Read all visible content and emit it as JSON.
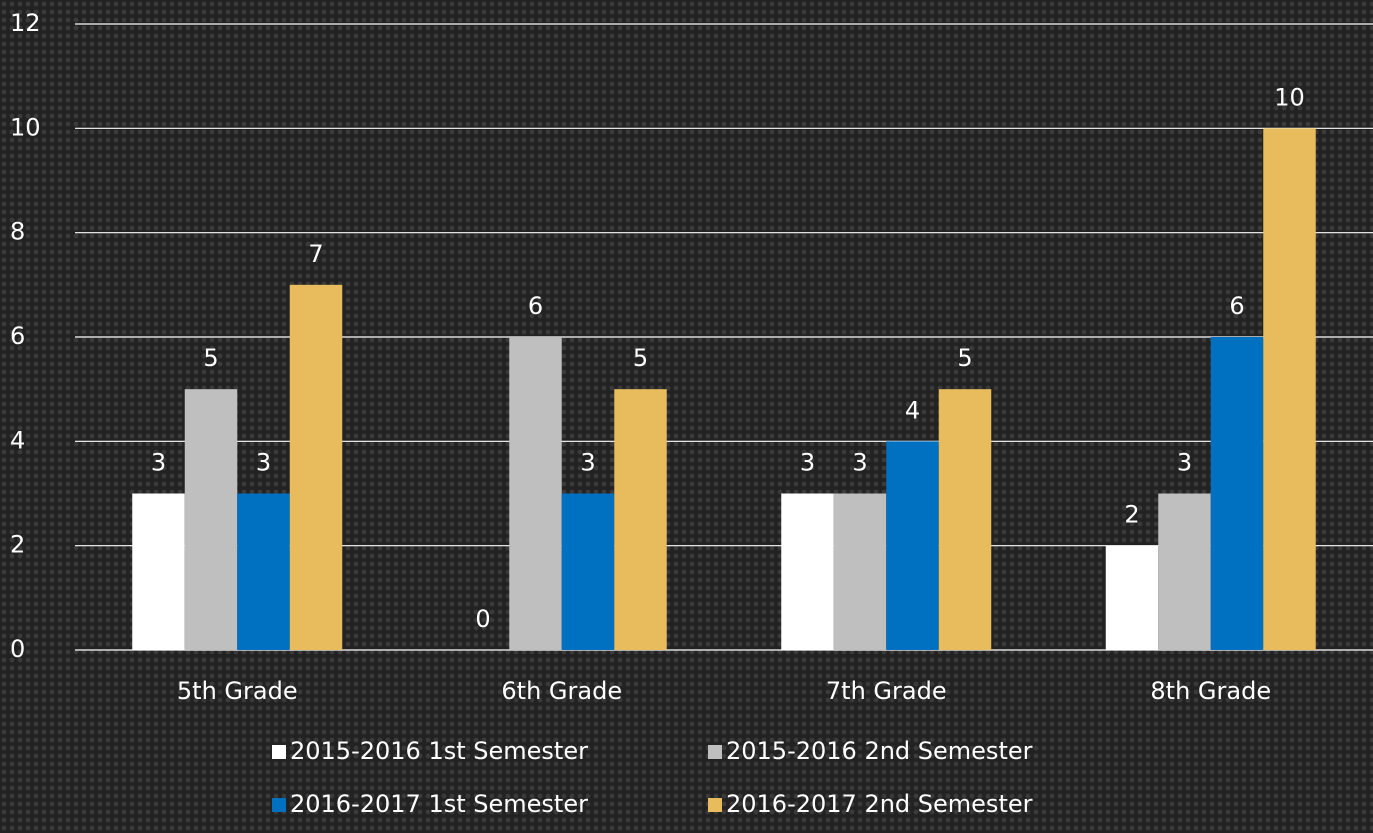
{
  "chart_data": {
    "type": "bar",
    "categories": [
      "5th Grade",
      "6th Grade",
      "7th Grade",
      "8th Grade"
    ],
    "series": [
      {
        "name": "2015-2016 1st Semester",
        "color": "#ffffff",
        "values": [
          3,
          0,
          3,
          2
        ]
      },
      {
        "name": "2015-2016 2nd Semester",
        "color": "#bfbfbf",
        "values": [
          5,
          6,
          3,
          3
        ]
      },
      {
        "name": "2016-2017 1st Semester",
        "color": "#0070c0",
        "values": [
          3,
          3,
          4,
          6
        ]
      },
      {
        "name": "2016-2017 2nd Semester",
        "color": "#e8bc5c",
        "values": [
          7,
          5,
          5,
          10
        ]
      }
    ],
    "ylim": [
      0,
      12
    ],
    "yticks": [
      0,
      2,
      4,
      6,
      8,
      10,
      12
    ],
    "grid": true,
    "legend": "bottom"
  }
}
